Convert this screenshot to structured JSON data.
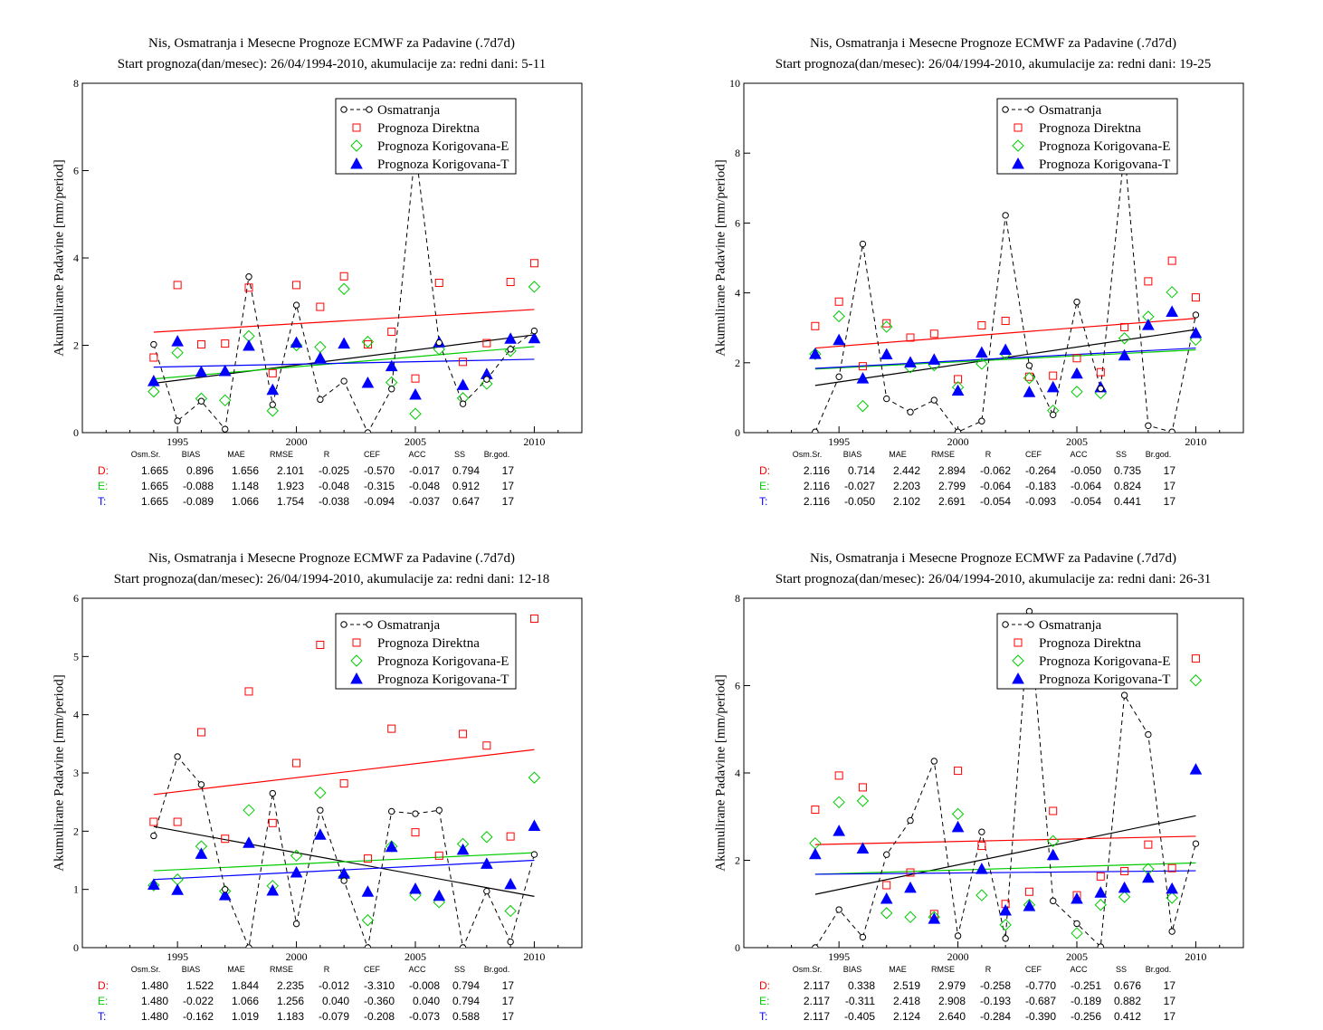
{
  "charts": [
    {
      "title1": "Nis, Osmatranja i Mesecne Prognoze ECMWF za Padavine (.7d7d)",
      "title2": "Start prognoza(dan/mesec): 26/04/1994-2010, akumulacije za: redni dani: 5-11",
      "ylabel": "Akumulirane Padavine [mm/period]",
      "stats": [
        {
          "label": "D:",
          "color": "#ff0000",
          "values": [
            "1.665",
            "0.896",
            "1.656",
            "2.101",
            "-0.025",
            "-0.570",
            "-0.017",
            "0.794",
            "17"
          ]
        },
        {
          "label": "E:",
          "color": "#00cc00",
          "values": [
            "1.665",
            "-0.088",
            "1.148",
            "1.923",
            "-0.048",
            "-0.315",
            "-0.048",
            "0.912",
            "17"
          ]
        },
        {
          "label": "T:",
          "color": "#0000ff",
          "values": [
            "1.665",
            "-0.089",
            "1.066",
            "1.754",
            "-0.038",
            "-0.094",
            "-0.037",
            "0.647",
            "17"
          ]
        }
      ]
    },
    {
      "title1": "Nis, Osmatranja i Mesecne Prognoze ECMWF za Padavine (.7d7d)",
      "title2": "Start prognoza(dan/mesec): 26/04/1994-2010, akumulacije za: redni dani: 19-25",
      "ylabel": "Akumulirane Padavine [mm/period]",
      "stats": [
        {
          "label": "D:",
          "color": "#ff0000",
          "values": [
            "2.116",
            "0.714",
            "2.442",
            "2.894",
            "-0.062",
            "-0.264",
            "-0.050",
            "0.735",
            "17"
          ]
        },
        {
          "label": "E:",
          "color": "#00cc00",
          "values": [
            "2.116",
            "-0.027",
            "2.203",
            "2.799",
            "-0.064",
            "-0.183",
            "-0.064",
            "0.824",
            "17"
          ]
        },
        {
          "label": "T:",
          "color": "#0000ff",
          "values": [
            "2.116",
            "-0.050",
            "2.102",
            "2.691",
            "-0.054",
            "-0.093",
            "-0.054",
            "0.441",
            "17"
          ]
        }
      ]
    },
    {
      "title1": "Nis, Osmatranja i Mesecne Prognoze ECMWF za Padavine (.7d7d)",
      "title2": "Start prognoza(dan/mesec): 26/04/1994-2010, akumulacije za: redni dani: 12-18",
      "ylabel": "Akumulirane Padavine [mm/period]",
      "stats": [
        {
          "label": "D:",
          "color": "#ff0000",
          "values": [
            "1.480",
            "1.522",
            "1.844",
            "2.235",
            "-0.012",
            "-3.310",
            "-0.008",
            "0.794",
            "17"
          ]
        },
        {
          "label": "E:",
          "color": "#00cc00",
          "values": [
            "1.480",
            "-0.022",
            "1.066",
            "1.256",
            "0.040",
            "-0.360",
            "0.040",
            "0.794",
            "17"
          ]
        },
        {
          "label": "T:",
          "color": "#0000ff",
          "values": [
            "1.480",
            "-0.162",
            "1.019",
            "1.183",
            "-0.079",
            "-0.208",
            "-0.073",
            "0.588",
            "17"
          ]
        }
      ]
    },
    {
      "title1": "Nis, Osmatranja i Mesecne Prognoze ECMWF za Padavine (.7d7d)",
      "title2": "Start prognoza(dan/mesec): 26/04/1994-2010, akumulacije za: redni dani: 26-31",
      "ylabel": "Akumulirane Padavine [mm/period]",
      "stats": [
        {
          "label": "D:",
          "color": "#ff0000",
          "values": [
            "2.117",
            "0.338",
            "2.519",
            "2.979",
            "-0.258",
            "-0.770",
            "-0.251",
            "0.676",
            "17"
          ]
        },
        {
          "label": "E:",
          "color": "#00cc00",
          "values": [
            "2.117",
            "-0.311",
            "2.418",
            "2.908",
            "-0.193",
            "-0.687",
            "-0.189",
            "0.882",
            "17"
          ]
        },
        {
          "label": "T:",
          "color": "#0000ff",
          "values": [
            "2.117",
            "-0.405",
            "2.124",
            "2.640",
            "-0.284",
            "-0.390",
            "-0.256",
            "0.412",
            "17"
          ]
        }
      ]
    }
  ],
  "stats_header": [
    "Osm.Sr.",
    "BIAS",
    "MAE",
    "RMSE",
    "R",
    "CEF",
    "ACC",
    "SS",
    "Br.god."
  ],
  "legend": [
    "Osmatranja",
    "Prognoza Direktna",
    "Prognoza Korigovana-E",
    "Prognoza Korigovana-T"
  ],
  "colors": {
    "obs": "#000000",
    "direct": "#ff0000",
    "corrE": "#00cc00",
    "corrT": "#0000ff"
  },
  "chart_data": [
    {
      "type": "line",
      "x": [
        1994,
        1995,
        1996,
        1997,
        1998,
        1999,
        2000,
        2001,
        2002,
        2003,
        2004,
        2005,
        2006,
        2007,
        2008,
        2009,
        2010
      ],
      "xticks": [
        1995,
        2000,
        2005,
        2010
      ],
      "xlim": [
        1991,
        2012
      ],
      "ylim": [
        0,
        8
      ],
      "yticks": [
        0,
        2,
        4,
        6,
        8
      ],
      "series": [
        {
          "name": "Osmatranja",
          "values": [
            2.02,
            0.27,
            0.72,
            0.08,
            3.57,
            0.64,
            2.92,
            0.76,
            1.18,
            0.0,
            1.0,
            6.5,
            2.06,
            0.66,
            1.22,
            1.91,
            2.33
          ]
        },
        {
          "name": "Prognoza Direktna",
          "values": [
            1.72,
            3.38,
            2.02,
            2.04,
            3.32,
            1.36,
            3.38,
            2.88,
            3.58,
            2.02,
            2.31,
            1.24,
            3.43,
            1.62,
            2.05,
            3.45,
            3.88
          ]
        },
        {
          "name": "Prognoza Korigovana-E",
          "values": [
            0.94,
            1.83,
            0.78,
            0.74,
            2.21,
            0.5,
            2.0,
            1.96,
            3.29,
            2.08,
            1.15,
            0.43,
            1.91,
            0.79,
            1.12,
            1.87,
            3.34
          ]
        },
        {
          "name": "Prognoza Korigovana-T",
          "values": [
            1.18,
            2.09,
            1.39,
            1.41,
            1.99,
            0.98,
            2.06,
            1.71,
            2.04,
            1.14,
            1.52,
            0.87,
            2.07,
            1.09,
            1.34,
            2.15,
            2.16
          ]
        }
      ],
      "trends": [
        {
          "name": "Osmatranja",
          "y": [
            1.13,
            2.24
          ]
        },
        {
          "name": "Prognoza Direktna",
          "y": [
            2.3,
            2.82
          ]
        },
        {
          "name": "Prognoza Korigovana-E",
          "y": [
            1.23,
            1.97
          ]
        },
        {
          "name": "Prognoza Korigovana-T",
          "y": [
            1.5,
            1.68
          ]
        }
      ]
    },
    {
      "type": "line",
      "x": [
        1994,
        1995,
        1996,
        1997,
        1998,
        1999,
        2000,
        2001,
        2002,
        2003,
        2004,
        2005,
        2006,
        2007,
        2008,
        2009,
        2010
      ],
      "xticks": [
        1995,
        2000,
        2005,
        2010
      ],
      "xlim": [
        1991,
        2012
      ],
      "ylim": [
        0,
        10
      ],
      "yticks": [
        0,
        2,
        4,
        6,
        8,
        10
      ],
      "series": [
        {
          "name": "Osmatranja",
          "values": [
            0.02,
            1.6,
            5.4,
            0.97,
            0.59,
            0.93,
            0.02,
            0.33,
            6.22,
            1.92,
            0.51,
            3.74,
            1.26,
            8.1,
            0.2,
            0.02,
            3.37
          ]
        },
        {
          "name": "Prognoza Direktna",
          "values": [
            3.05,
            3.75,
            1.9,
            3.13,
            2.72,
            2.83,
            1.53,
            3.07,
            3.2,
            1.6,
            1.63,
            2.13,
            1.73,
            3.02,
            4.33,
            4.92,
            3.87
          ]
        },
        {
          "name": "Prognoza Korigovana-E",
          "values": [
            2.25,
            3.33,
            0.76,
            3.03,
            1.87,
            1.93,
            1.3,
            1.97,
            2.26,
            1.56,
            0.63,
            1.17,
            1.13,
            2.7,
            3.32,
            4.02,
            2.66
          ]
        },
        {
          "name": "Prognoza Korigovana-T",
          "values": [
            2.25,
            2.65,
            1.55,
            2.24,
            2.01,
            2.09,
            1.2,
            2.29,
            2.37,
            1.16,
            1.3,
            1.69,
            1.3,
            2.21,
            3.08,
            3.46,
            2.85
          ]
        }
      ],
      "trends": [
        {
          "name": "Osmatranja",
          "y": [
            1.35,
            2.95
          ]
        },
        {
          "name": "Prognoza Direktna",
          "y": [
            2.42,
            3.27
          ]
        },
        {
          "name": "Prognoza Korigovana-E",
          "y": [
            1.82,
            2.37
          ]
        },
        {
          "name": "Prognoza Korigovana-T",
          "y": [
            1.84,
            2.42
          ]
        }
      ]
    },
    {
      "type": "line",
      "x": [
        1994,
        1995,
        1996,
        1997,
        1998,
        1999,
        2000,
        2001,
        2002,
        2003,
        2004,
        2005,
        2006,
        2007,
        2008,
        2009,
        2010
      ],
      "xticks": [
        1995,
        2000,
        2005,
        2010
      ],
      "xlim": [
        1991,
        2012
      ],
      "ylim": [
        0,
        6
      ],
      "yticks": [
        0,
        1,
        2,
        3,
        4,
        5,
        6
      ],
      "series": [
        {
          "name": "Osmatranja",
          "values": [
            1.92,
            3.28,
            2.8,
            1.0,
            0.0,
            2.65,
            0.41,
            2.36,
            1.15,
            0.0,
            2.34,
            2.3,
            2.36,
            0.0,
            0.97,
            0.1,
            1.6
          ]
        },
        {
          "name": "Prognoza Direktna",
          "values": [
            2.16,
            2.16,
            3.7,
            1.87,
            4.4,
            2.14,
            3.17,
            5.2,
            2.82,
            1.53,
            3.76,
            1.98,
            1.58,
            3.67,
            3.47,
            1.91,
            5.65
          ]
        },
        {
          "name": "Prognoza Korigovana-E",
          "values": [
            1.07,
            1.17,
            1.74,
            0.97,
            2.36,
            1.06,
            1.58,
            2.66,
            1.22,
            0.47,
            1.74,
            0.9,
            0.78,
            1.78,
            1.9,
            0.63,
            2.92
          ]
        },
        {
          "name": "Prognoza Korigovana-T",
          "values": [
            1.08,
            0.99,
            1.61,
            0.9,
            1.8,
            0.98,
            1.29,
            1.94,
            1.27,
            0.96,
            1.73,
            1.01,
            0.89,
            1.68,
            1.44,
            1.09,
            2.09
          ]
        }
      ],
      "trends": [
        {
          "name": "Osmatranja",
          "y": [
            2.08,
            0.88
          ]
        },
        {
          "name": "Prognoza Direktna",
          "y": [
            2.63,
            3.4
          ]
        },
        {
          "name": "Prognoza Korigovana-E",
          "y": [
            1.32,
            1.63
          ]
        },
        {
          "name": "Prognoza Korigovana-T",
          "y": [
            1.17,
            1.5
          ]
        }
      ]
    },
    {
      "type": "line",
      "x": [
        1994,
        1995,
        1996,
        1997,
        1998,
        1999,
        2000,
        2001,
        2002,
        2003,
        2004,
        2005,
        2006,
        2007,
        2008,
        2009,
        2010
      ],
      "xticks": [
        1995,
        2000,
        2005,
        2010
      ],
      "xlim": [
        1991,
        2012
      ],
      "ylim": [
        0,
        8
      ],
      "yticks": [
        0,
        2,
        4,
        6,
        8
      ],
      "series": [
        {
          "name": "Osmatranja",
          "values": [
            0.0,
            0.87,
            0.24,
            2.13,
            2.91,
            4.27,
            0.27,
            2.65,
            0.21,
            7.7,
            1.07,
            0.55,
            0.02,
            5.78,
            4.88,
            0.37,
            2.38
          ]
        },
        {
          "name": "Prognoza Direktna",
          "values": [
            3.16,
            3.94,
            3.67,
            1.43,
            1.72,
            0.77,
            4.05,
            2.33,
            1.0,
            1.28,
            3.13,
            1.2,
            1.63,
            1.75,
            2.36,
            1.82,
            6.62
          ]
        },
        {
          "name": "Prognoza Korigovana-E",
          "values": [
            2.39,
            3.33,
            3.36,
            0.79,
            0.7,
            0.7,
            3.06,
            1.2,
            0.52,
            0.98,
            2.44,
            0.33,
            0.98,
            1.16,
            1.8,
            1.14,
            6.12
          ]
        },
        {
          "name": "Prognoza Korigovana-T",
          "values": [
            2.14,
            2.67,
            2.27,
            1.12,
            1.37,
            0.66,
            2.76,
            1.8,
            0.85,
            0.95,
            2.12,
            1.12,
            1.26,
            1.37,
            1.6,
            1.35,
            4.08
          ]
        }
      ],
      "trends": [
        {
          "name": "Osmatranja",
          "y": [
            1.22,
            3.02
          ]
        },
        {
          "name": "Prognoza Direktna",
          "y": [
            2.36,
            2.55
          ]
        },
        {
          "name": "Prognoza Korigovana-E",
          "y": [
            1.68,
            1.94
          ]
        },
        {
          "name": "Prognoza Korigovana-T",
          "y": [
            1.68,
            1.76
          ]
        }
      ]
    }
  ]
}
